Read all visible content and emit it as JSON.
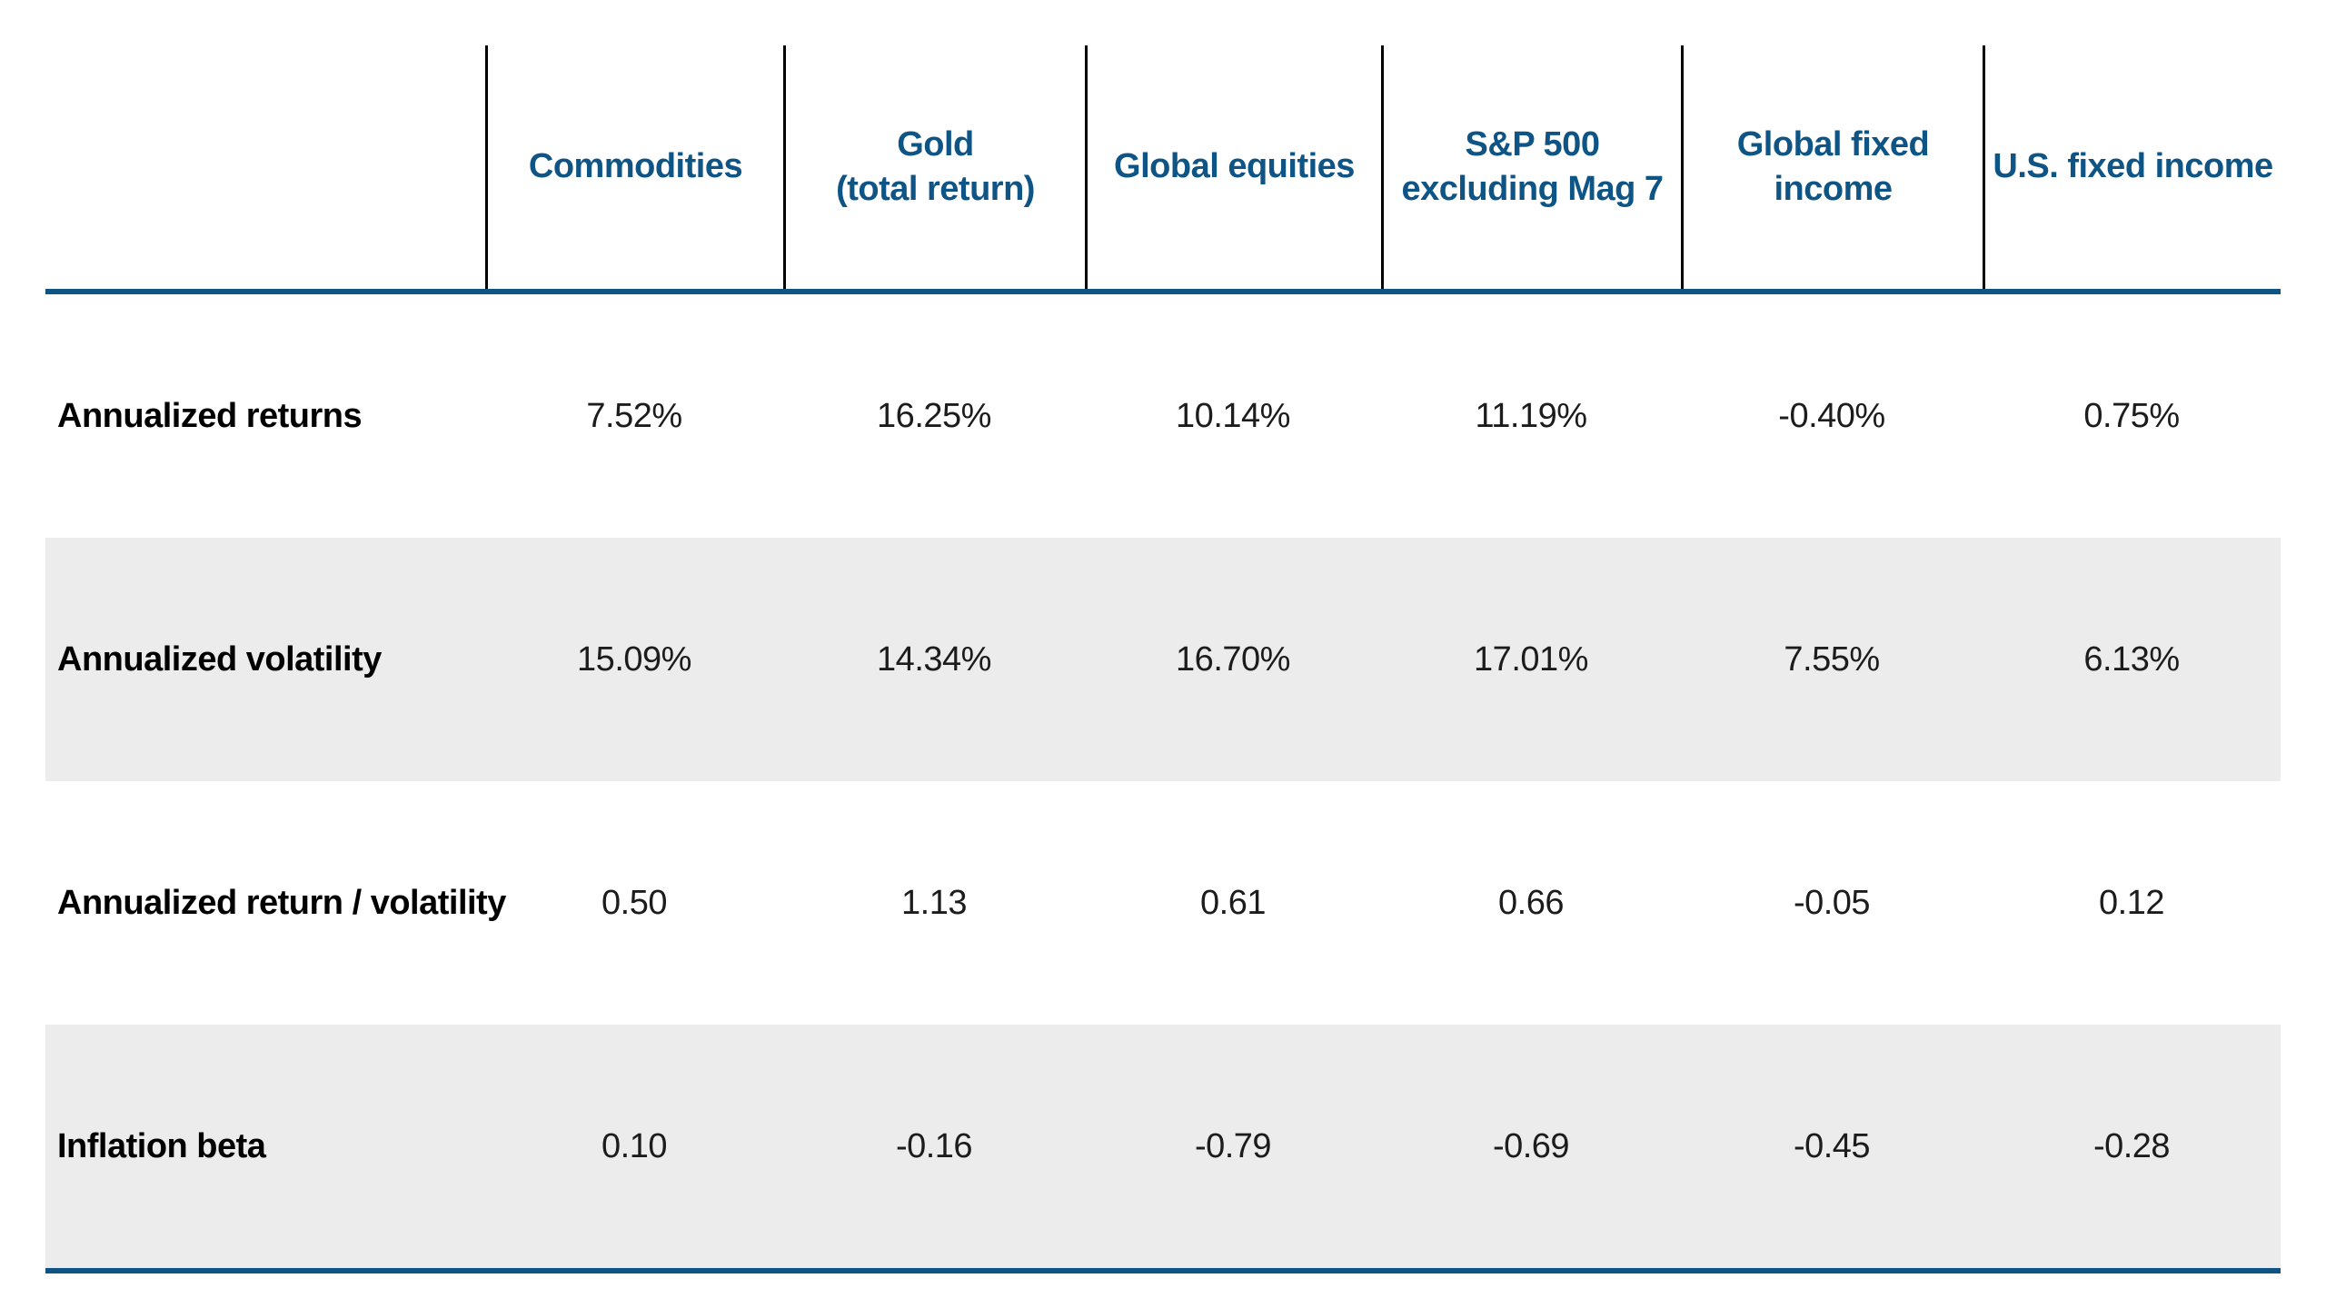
{
  "chart_data": {
    "type": "table",
    "columns": [
      "Commodities",
      "Gold (total return)",
      "Global equities",
      "S&P 500 excluding Mag 7",
      "Global fixed income",
      "U.S. fixed income"
    ],
    "rows": [
      {
        "label": "Annualized returns",
        "values": [
          "7.52%",
          "16.25%",
          "10.14%",
          "11.19%",
          "-0.40%",
          "0.75%"
        ]
      },
      {
        "label": "Annualized volatility",
        "values": [
          "15.09%",
          "14.34%",
          "16.70%",
          "17.01%",
          "7.55%",
          "6.13%"
        ]
      },
      {
        "label": "Annualized return / volatility",
        "values": [
          "0.50",
          "1.13",
          "0.61",
          "0.66",
          "-0.05",
          "0.12"
        ]
      },
      {
        "label": "Inflation beta",
        "values": [
          "0.10",
          "-0.16",
          "-0.79",
          "-0.69",
          "-0.45",
          "-0.28"
        ]
      }
    ]
  },
  "header": {
    "labels": [
      "Commodities",
      "Gold\n(total return)",
      "Global equities",
      "S&P 500\nexcluding Mag 7",
      "Global fixed\nincome",
      "U.S. fixed income"
    ]
  },
  "colors": {
    "accent_blue": "#0e5586",
    "stripe_gray": "#ececec",
    "line_black": "#000000"
  }
}
